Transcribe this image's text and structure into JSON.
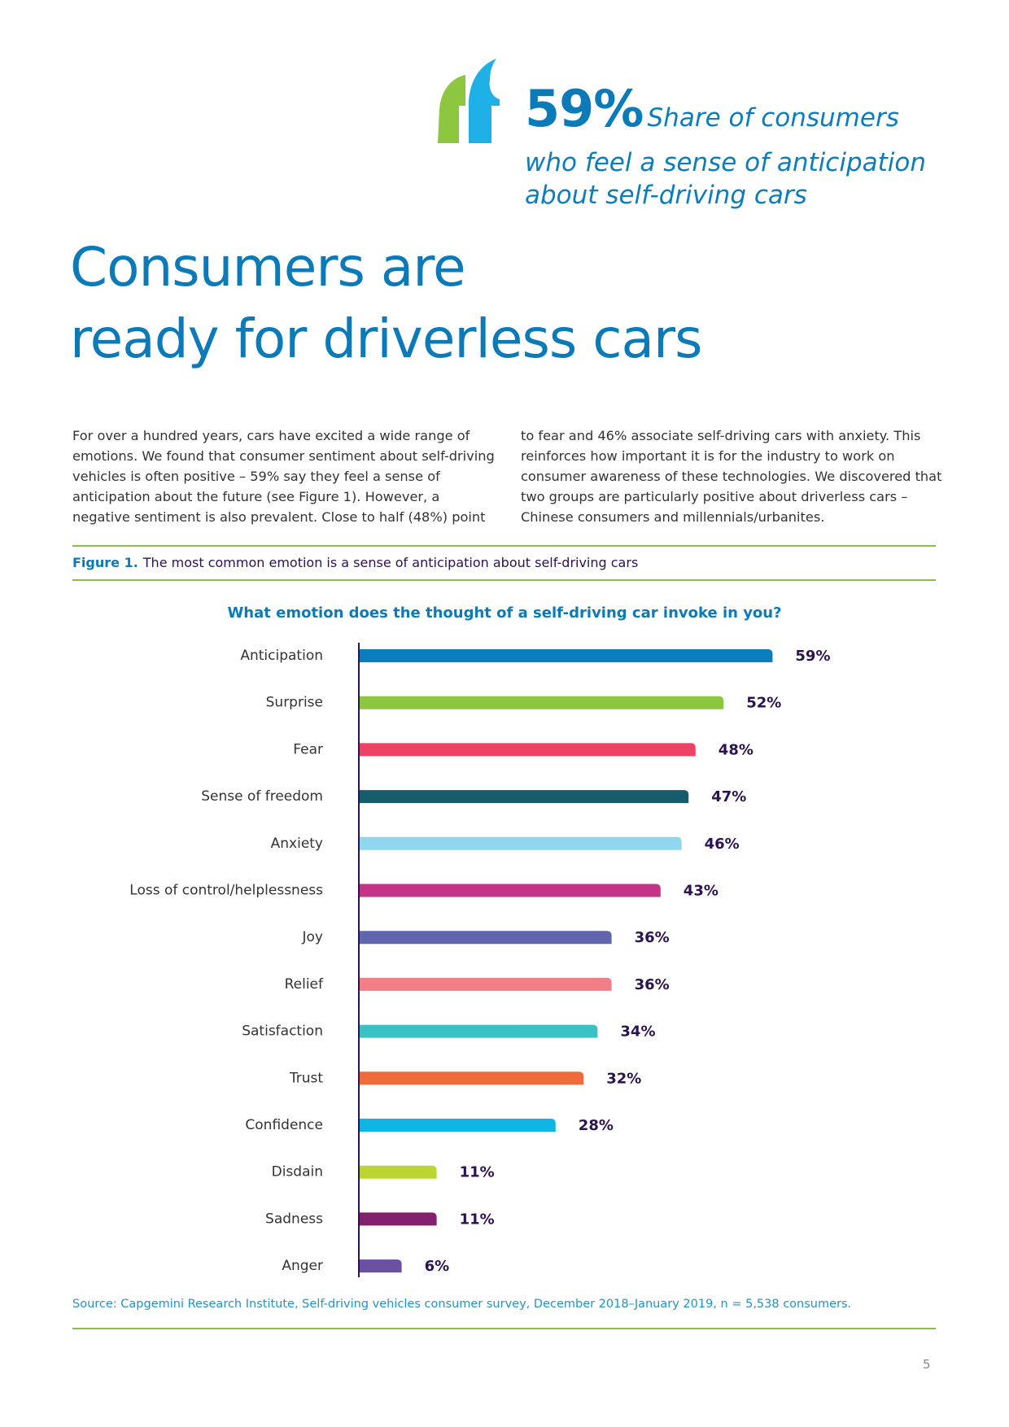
{
  "callout": {
    "stat": "59%",
    "line1": "Share of consumers",
    "line2": "who feel a sense of anticipation",
    "line3": "about self-driving cars",
    "colors": {
      "quote_left": "#8dc63f",
      "quote_right": "#1eb0e6",
      "text": "#0a7bb8"
    }
  },
  "heading": {
    "line1": "Consumers are",
    "line2": "ready for driverless cars"
  },
  "body": {
    "left": "For over a hundred years, cars have excited a wide range of emotions. We found that consumer sentiment about self-driving vehicles is often positive – 59% say they feel a sense of anticipation about the future (see Figure 1). However, a negative sentiment is also prevalent. Close to half (48%) point",
    "right": "to fear and 46% associate self-driving cars with anxiety. This reinforces how important it is for the industry to work on consumer awareness of these technologies. We discovered that two groups are particularly positive about driverless cars – Chinese consumers and millennials/urbanites."
  },
  "figure": {
    "number": "Figure 1.",
    "caption": "The most common emotion is a sense of anticipation about self-driving cars"
  },
  "chart_data": {
    "type": "bar",
    "orientation": "horizontal",
    "title": "What emotion does the thought of a self-driving car invoke in you?",
    "xlabel": "",
    "ylabel": "",
    "unit": "%",
    "xlim": [
      0,
      60
    ],
    "grid": false,
    "legend": "none",
    "categories": [
      "Anticipation",
      "Surprise",
      "Fear",
      "Sense of freedom",
      "Anxiety",
      "Loss of control/helplessness",
      "Joy",
      "Relief",
      "Satisfaction",
      "Trust",
      "Confidence",
      "Disdain",
      "Sadness",
      "Anger"
    ],
    "values": [
      59,
      52,
      48,
      47,
      46,
      43,
      36,
      36,
      34,
      32,
      28,
      11,
      11,
      6
    ],
    "labels": [
      "59%",
      "52%",
      "48%",
      "47%",
      "46%",
      "43%",
      "36%",
      "36%",
      "34%",
      "32%",
      "28%",
      "11%",
      "11%",
      "6%"
    ],
    "colors": [
      "#0a7dbd",
      "#8dc63f",
      "#ec4263",
      "#175c6b",
      "#8fd6ef",
      "#c53388",
      "#5f66ad",
      "#f27f86",
      "#3ac1c3",
      "#ef6b3c",
      "#10b5e4",
      "#bcd531",
      "#821f6e",
      "#6a4fa3"
    ],
    "axis_color": "#2b1250",
    "label_color": "#2b1250"
  },
  "source": "Source: Capgemini Research Institute, Self-driving vehicles consumer survey, December 2018–January 2019, n = 5,538 consumers.",
  "page_number": "5"
}
